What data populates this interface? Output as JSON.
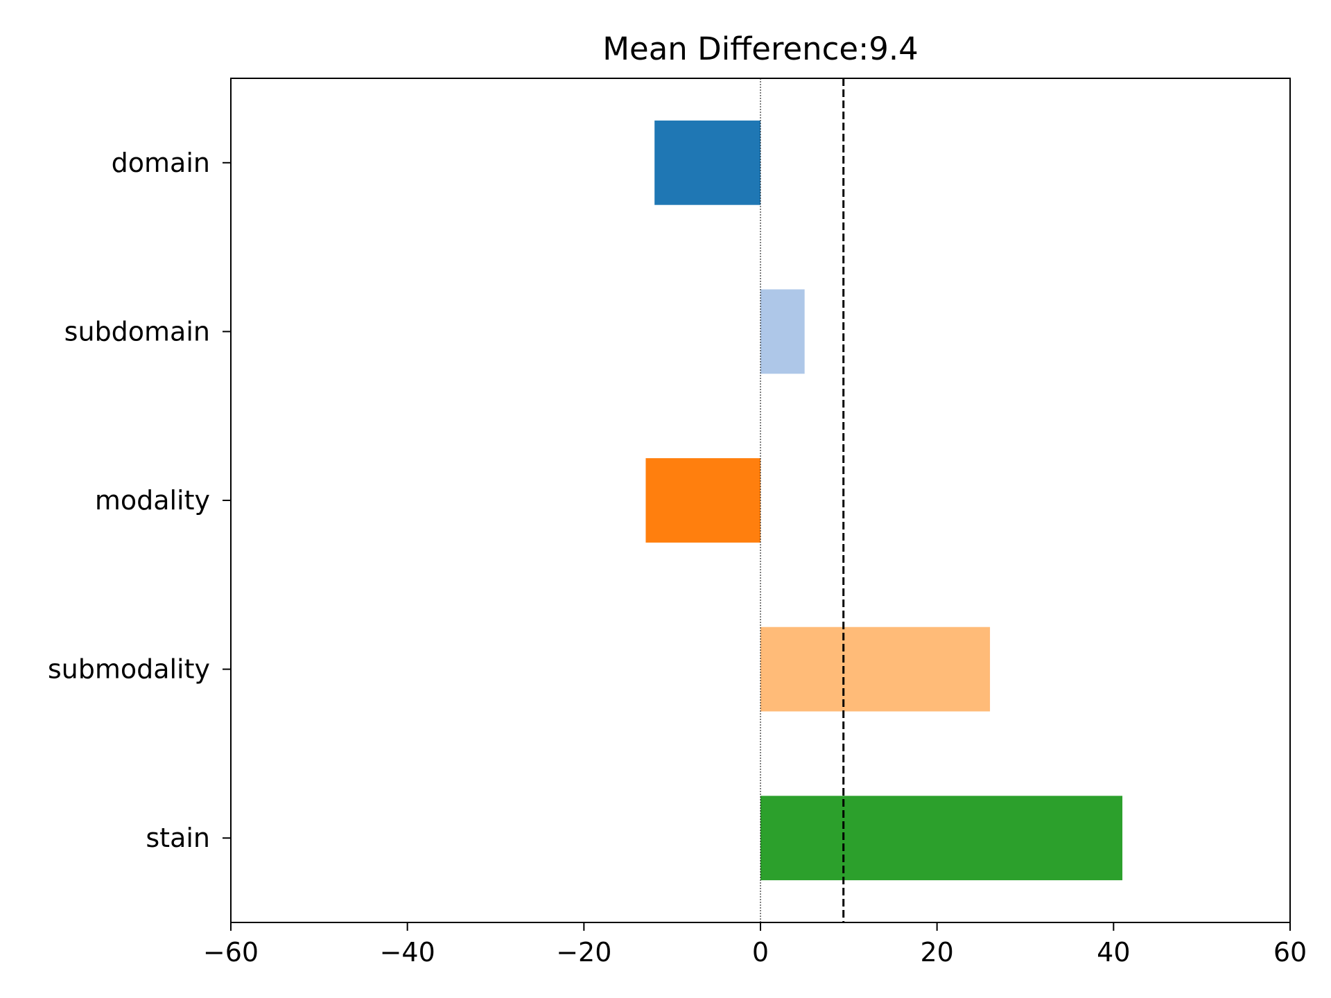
{
  "chart_data": {
    "type": "bar",
    "orientation": "horizontal",
    "title": "Mean Difference:9.4",
    "xlabel": "",
    "ylabel": "",
    "categories": [
      "domain",
      "subdomain",
      "modality",
      "submodality",
      "stain"
    ],
    "values": [
      -12,
      5,
      -13,
      26,
      41
    ],
    "colors": [
      "#1f77b4",
      "#aec7e8",
      "#ff7f0e",
      "#ffbb78",
      "#2ca02c"
    ],
    "xlim": [
      -60,
      60
    ],
    "xticks": [
      -60,
      -40,
      -20,
      0,
      20,
      40,
      60
    ],
    "xtick_labels": [
      "−60",
      "−40",
      "−20",
      "0",
      "20",
      "40",
      "60"
    ],
    "reference_lines": [
      {
        "name": "zero",
        "value": 0,
        "style": "dotted",
        "color": "#000000"
      },
      {
        "name": "mean",
        "value": 9.4,
        "style": "dashed",
        "color": "#000000"
      }
    ],
    "grid": false,
    "legend": "none"
  }
}
